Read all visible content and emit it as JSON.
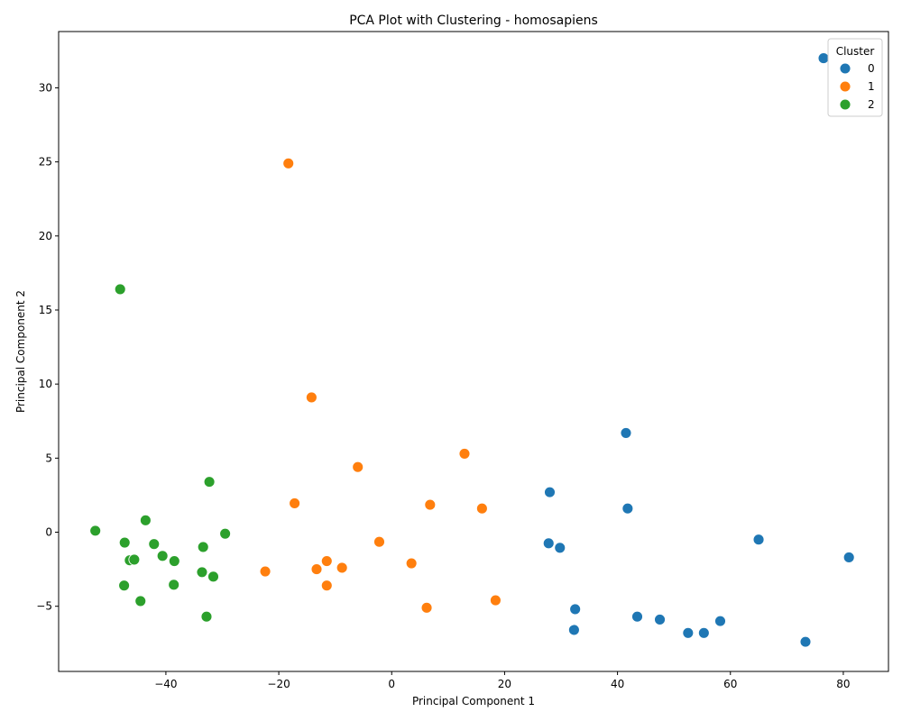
{
  "chart_data": {
    "type": "scatter",
    "title": "PCA Plot with Clustering - homosapiens",
    "xlabel": "Principal Component 1",
    "ylabel": "Principal Component 2",
    "xlim": [
      -59,
      88
    ],
    "ylim": [
      -9.4,
      33.8
    ],
    "xticks": [
      -40,
      -20,
      0,
      20,
      40,
      60,
      80
    ],
    "yticks": [
      -5,
      0,
      5,
      10,
      15,
      20,
      25,
      30
    ],
    "grid": false,
    "legend": {
      "title": "Cluster",
      "placement": "top-right"
    },
    "series": [
      {
        "name": "0",
        "color": "#1f77b4",
        "points": [
          [
            76.5,
            32.0
          ],
          [
            41.5,
            6.7
          ],
          [
            28.0,
            2.7
          ],
          [
            41.8,
            1.6
          ],
          [
            65.0,
            -0.5
          ],
          [
            81.0,
            -1.7
          ],
          [
            27.8,
            -0.75
          ],
          [
            29.8,
            -1.05
          ],
          [
            32.5,
            -5.2
          ],
          [
            43.5,
            -5.7
          ],
          [
            47.5,
            -5.9
          ],
          [
            58.2,
            -6.0
          ],
          [
            32.3,
            -6.6
          ],
          [
            52.5,
            -6.8
          ],
          [
            55.3,
            -6.8
          ],
          [
            73.3,
            -7.4
          ]
        ]
      },
      {
        "name": "1",
        "color": "#ff7f0e",
        "points": [
          [
            -18.3,
            24.9
          ],
          [
            -14.2,
            9.1
          ],
          [
            12.9,
            5.3
          ],
          [
            -6.0,
            4.4
          ],
          [
            -17.2,
            1.95
          ],
          [
            6.8,
            1.85
          ],
          [
            16.0,
            1.6
          ],
          [
            -2.2,
            -0.65
          ],
          [
            3.5,
            -2.1
          ],
          [
            -11.5,
            -1.95
          ],
          [
            -8.8,
            -2.4
          ],
          [
            -13.3,
            -2.5
          ],
          [
            -22.4,
            -2.65
          ],
          [
            -11.5,
            -3.6
          ],
          [
            6.2,
            -5.1
          ],
          [
            18.4,
            -4.6
          ]
        ]
      },
      {
        "name": "2",
        "color": "#2ca02c",
        "points": [
          [
            -48.1,
            16.4
          ],
          [
            -32.3,
            3.4
          ],
          [
            -43.6,
            0.8
          ],
          [
            -52.5,
            0.1
          ],
          [
            -29.5,
            -0.1
          ],
          [
            -47.3,
            -0.7
          ],
          [
            -42.1,
            -0.8
          ],
          [
            -33.4,
            -1.0
          ],
          [
            -40.6,
            -1.6
          ],
          [
            -46.4,
            -1.9
          ],
          [
            -45.6,
            -1.85
          ],
          [
            -38.5,
            -1.95
          ],
          [
            -33.6,
            -2.7
          ],
          [
            -31.6,
            -3.0
          ],
          [
            -47.4,
            -3.6
          ],
          [
            -38.6,
            -3.55
          ],
          [
            -44.5,
            -4.65
          ],
          [
            -32.8,
            -5.7
          ]
        ]
      }
    ]
  }
}
